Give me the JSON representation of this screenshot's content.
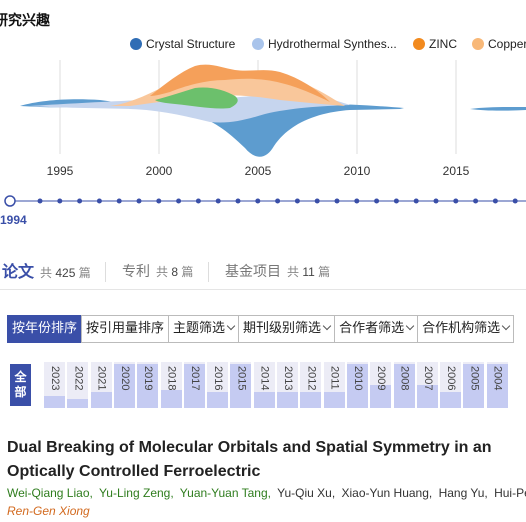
{
  "section_title": "研究兴趣",
  "legend": [
    {
      "label": "Crystal Structure",
      "color": "#2f6db5"
    },
    {
      "label": "Hydrothermal Synthes...",
      "color": "#a9c4eb"
    },
    {
      "label": "ZINC",
      "color": "#f28a1e"
    },
    {
      "label": "Copper",
      "color": "#f8b878"
    }
  ],
  "streamgraph": {
    "axis_ticks": [
      "1995",
      "2000",
      "2005",
      "2010",
      "2015"
    ],
    "colors": {
      "crystal": "#5d9ccf",
      "hydro": "#c6d5ee",
      "zinc": "#f5a05a",
      "copper": "#f9c79b",
      "green": "#6cc06c"
    }
  },
  "timeline": {
    "selected_year": "1994"
  },
  "tabs": [
    {
      "label": "论文",
      "count_prefix": "共",
      "count": "425",
      "count_suffix": "篇"
    },
    {
      "label": "专利",
      "count_prefix": "共",
      "count": "8",
      "count_suffix": "篇"
    },
    {
      "label": "基金项目",
      "count_prefix": "共",
      "count": "11",
      "count_suffix": "篇"
    }
  ],
  "filters": {
    "sort_by_year": "按年份排序",
    "sort_by_citation": "按引用量排序",
    "topic": "主题筛选",
    "journal_level": "期刊级别筛选",
    "coauthor": "合作者筛选",
    "institution": "合作机构筛选"
  },
  "year_filter": {
    "all_top": "全",
    "all_bottom": "部",
    "years": [
      {
        "year": "2023",
        "level": 0.25
      },
      {
        "year": "2022",
        "level": 0.2
      },
      {
        "year": "2021",
        "level": 0.35
      },
      {
        "year": "2020",
        "level": 0.95
      },
      {
        "year": "2019",
        "level": 0.95
      },
      {
        "year": "2018",
        "level": 0.4
      },
      {
        "year": "2017",
        "level": 0.95
      },
      {
        "year": "2016",
        "level": 0.35
      },
      {
        "year": "2015",
        "level": 0.95
      },
      {
        "year": "2014",
        "level": 0.35
      },
      {
        "year": "2013",
        "level": 0.35
      },
      {
        "year": "2012",
        "level": 0.35
      },
      {
        "year": "2011",
        "level": 0.35
      },
      {
        "year": "2010",
        "level": 0.95
      },
      {
        "year": "2009",
        "level": 0.5
      },
      {
        "year": "2008",
        "level": 0.95
      },
      {
        "year": "2007",
        "level": 0.5
      },
      {
        "year": "2006",
        "level": 0.35
      },
      {
        "year": "2005",
        "level": 0.95
      },
      {
        "year": "2004",
        "level": 0.95
      }
    ]
  },
  "paper": {
    "title": "Dual Breaking of Molecular Orbitals and Spatial Symmetry in an Optically Controlled Ferroelectric",
    "authors": [
      {
        "name": "Wei-Qiang Liao,",
        "highlight": true
      },
      {
        "name": "Yu-Ling Zeng,",
        "highlight": true
      },
      {
        "name": "Yuan-Yuan Tang,",
        "highlight": true
      },
      {
        "name": "Yu-Qiu Xu,",
        "highlight": false
      },
      {
        "name": "Xiao-Yun Huang,",
        "highlight": false
      },
      {
        "name": "Hang Yu,",
        "highlight": false
      },
      {
        "name": "Hui-Peng",
        "highlight": false
      }
    ],
    "corresponding_author": "Ren-Gen Xiong"
  }
}
